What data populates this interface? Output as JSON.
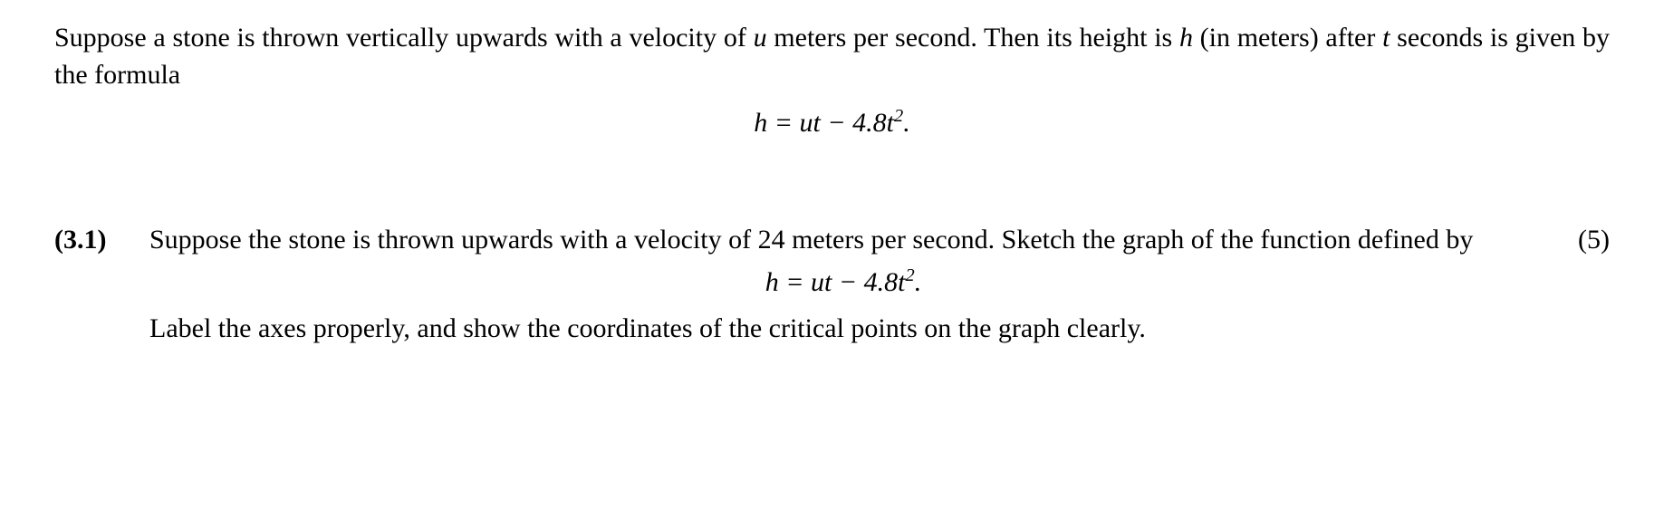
{
  "intro": {
    "prefix": "Suppose a stone is thrown vertically upwards with a velocity of ",
    "var_u": "u",
    "mid1": " meters per second. Then its height is ",
    "var_h": "h",
    "mid2": " (in meters) after ",
    "var_t": "t",
    "suffix": " seconds is given by the formula"
  },
  "formula": {
    "lhs_var": "h",
    "eq": " = ",
    "rhs_ut": "ut",
    "minus": " − 4.8",
    "t_base": "t",
    "t_exp": "2",
    "period": "."
  },
  "question": {
    "number": "(3.1)",
    "marks": "(5)",
    "line1": "Suppose the stone is thrown upwards with a velocity of 24 meters per second.  Sketch the graph of the function defined by",
    "line2": "Label the axes properly, and show the coordinates of the critical points on the graph clearly."
  },
  "style": {
    "font_family": "Times New Roman",
    "font_size_pt": 30,
    "text_color": "#000000",
    "background_color": "#ffffff"
  }
}
